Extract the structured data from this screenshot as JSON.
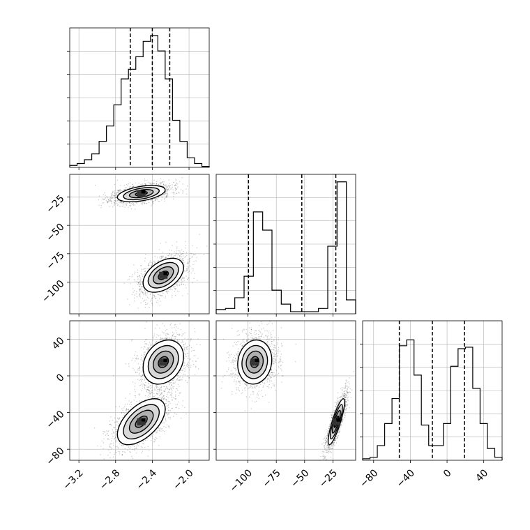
{
  "chart_data": {
    "type": "corner",
    "parameters": [
      {
        "index": 0,
        "range": [
          -3.3,
          -1.78
        ]
      },
      {
        "index": 1,
        "range": [
          -128,
          -5
        ]
      },
      {
        "index": 2,
        "range": [
          -92,
          60
        ]
      }
    ],
    "tick_labels": {
      "p0": [
        "−3.2",
        "−2.8",
        "−2.4",
        "−2.0"
      ],
      "p0_values": [
        -3.2,
        -2.8,
        -2.4,
        -2.0
      ],
      "p1": [
        "−100",
        "−75",
        "−50",
        "−25"
      ],
      "p1_values": [
        -100,
        -75,
        -50,
        -25
      ],
      "p2": [
        "−80",
        "−40",
        "0",
        "40"
      ],
      "p2_values": [
        -80,
        -40,
        0,
        40
      ]
    },
    "histograms": [
      {
        "param": 0,
        "quantiles": [
          -2.64,
          -2.4,
          -2.21
        ],
        "bin_edges": [
          -3.3,
          -3.22,
          -3.14,
          -3.06,
          -2.98,
          -2.9,
          -2.82,
          -2.74,
          -2.66,
          -2.58,
          -2.5,
          -2.42,
          -2.34,
          -2.26,
          -2.18,
          -2.1,
          -2.02,
          -1.94,
          -1.86,
          -1.78
        ],
        "counts": [
          2,
          4,
          8,
          14,
          27,
          43,
          65,
          92,
          102,
          115,
          131,
          137,
          121,
          92,
          49,
          27,
          10,
          4,
          1
        ],
        "ymax": 145
      },
      {
        "param": 1,
        "quantiles": [
          -99.5,
          -52.5,
          -22.5
        ],
        "bin_edges": [
          -128,
          -119.8,
          -111.6,
          -103.4,
          -95.2,
          -87,
          -78.8,
          -70.6,
          -62.4,
          -54.2,
          -46,
          -37.8,
          -29.6,
          -21.4,
          -13.2,
          -5
        ],
        "counts": [
          4,
          5,
          15,
          35,
          95,
          78,
          22,
          9,
          2,
          2,
          2,
          5,
          63,
          123,
          13
        ],
        "ymax": 130
      },
      {
        "param": 2,
        "quantiles": [
          -52,
          -16,
          19
        ],
        "bin_edges": [
          -92,
          -84,
          -76,
          -68,
          -60,
          -52,
          -44,
          -36,
          -28,
          -20,
          -12,
          -4,
          4,
          12,
          20,
          28,
          36,
          44,
          52,
          60
        ],
        "counts": [
          1,
          2,
          10,
          25,
          42,
          78,
          82,
          58,
          24,
          10,
          10,
          25,
          64,
          76,
          77,
          49,
          25,
          8,
          2
        ],
        "ymax": 95
      }
    ],
    "scatter_clusters": [
      {
        "id": "A",
        "p0_mean": -2.52,
        "p0_sd": 0.13,
        "p1_mean": -22.0,
        "p1_sd": 3.6,
        "p2_mean": -50.0,
        "p2_sd": 12.5,
        "corr_01": 0.45,
        "corr_02": 0.55,
        "corr_12": 0.85
      },
      {
        "id": "B",
        "p0_mean": -2.28,
        "p0_sd": 0.11,
        "p1_mean": -94.0,
        "p1_sd": 7.5,
        "p2_mean": 15.0,
        "p2_sd": 12.0,
        "corr_01": 0.45,
        "corr_02": 0.25,
        "corr_12": 0.1
      }
    ],
    "grid": true,
    "legend": "none"
  }
}
